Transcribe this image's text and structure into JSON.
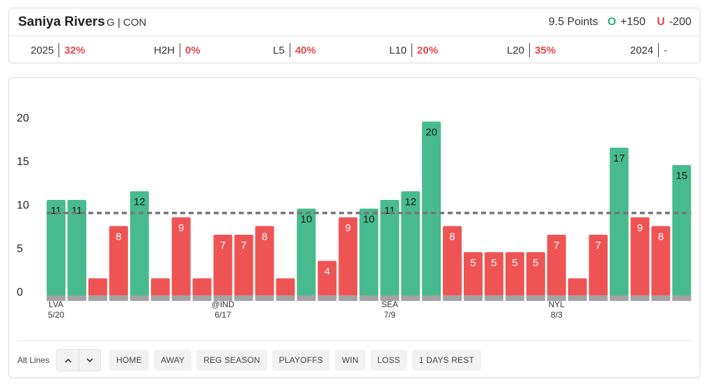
{
  "header": {
    "player_name": "Saniya Rivers",
    "player_meta": "G | CON",
    "line": "9.5 Points",
    "over_icon": "O",
    "over_odds": "+150",
    "under_icon": "U",
    "under_odds": "-200"
  },
  "stats": [
    {
      "label": "2025",
      "value": "32%"
    },
    {
      "label": "H2H",
      "value": "0%"
    },
    {
      "label": "L5",
      "value": "40%"
    },
    {
      "label": "L10",
      "value": "20%"
    },
    {
      "label": "L20",
      "value": "35%"
    },
    {
      "label": "2024",
      "value": "-"
    }
  ],
  "controls": {
    "alt_lines_label": "Alt Lines",
    "up_icon": "chevron-up-icon",
    "down_icon": "chevron-down-icon",
    "filters": [
      "HOME",
      "AWAY",
      "REG SEASON",
      "PLAYOFFS",
      "WIN",
      "LOSS",
      "1 DAYS REST"
    ]
  },
  "colors": {
    "over": "#47bb8f",
    "under": "#ef5455",
    "base": "#a3a3a3",
    "line": "#777777"
  },
  "chart_data": {
    "type": "bar",
    "values": [
      11,
      11,
      2,
      8,
      12,
      2,
      9,
      2,
      7,
      7,
      8,
      2,
      10,
      4,
      9,
      10,
      11,
      12,
      20,
      8,
      5,
      5,
      5,
      5,
      7,
      2,
      7,
      17,
      9,
      8,
      15
    ],
    "x_tick_labels": [
      {
        "index": 0,
        "opponent": "LVA",
        "date": "5/20"
      },
      {
        "index": 8,
        "opponent": "@IND",
        "date": "6/17"
      },
      {
        "index": 16,
        "opponent": "SEA",
        "date": "7/9"
      },
      {
        "index": 24,
        "opponent": "NYL",
        "date": "8/3"
      }
    ],
    "y_ticks": [
      0,
      5,
      10,
      15,
      20
    ],
    "ylim": [
      0,
      20
    ],
    "line_value": 9.5,
    "grid": false
  }
}
